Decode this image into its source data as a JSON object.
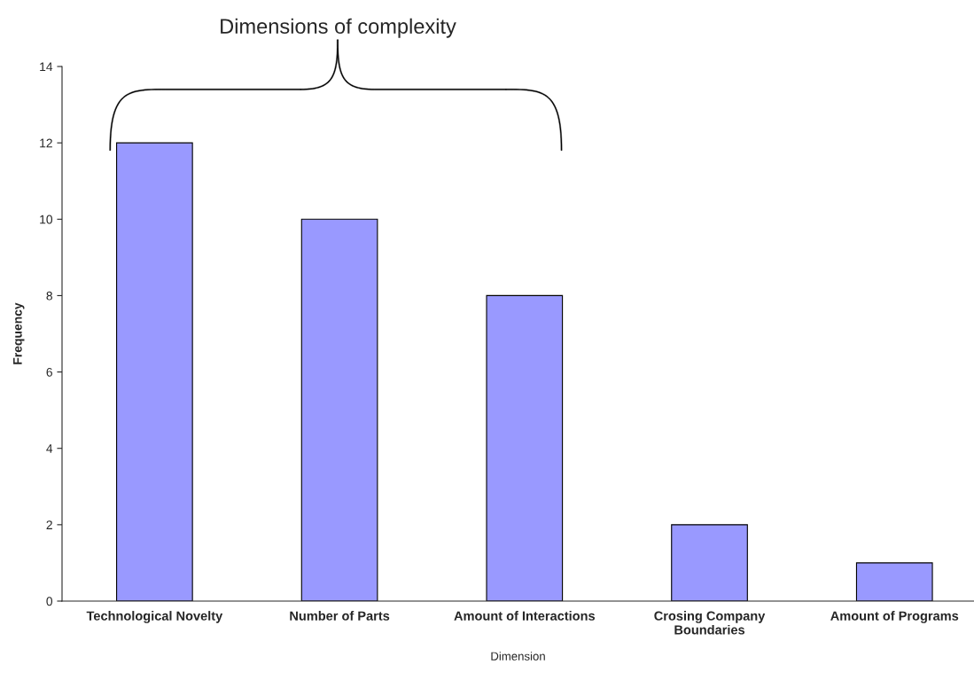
{
  "chart_data": {
    "type": "bar",
    "categories": [
      "Technological Novelty",
      "Number of Parts",
      "Amount of Interactions",
      "Crosing Company\nBoundaries",
      "Amount of Programs"
    ],
    "values": [
      12,
      10,
      8,
      2,
      1
    ],
    "color": "#9999ff",
    "xlabel": "Dimension",
    "ylabel": "Frequency",
    "ylim": [
      0,
      14
    ],
    "yticks": [
      0,
      2,
      4,
      6,
      8,
      10,
      12,
      14
    ],
    "annotations": [
      "Dimensions of complexity"
    ],
    "grid": false
  }
}
